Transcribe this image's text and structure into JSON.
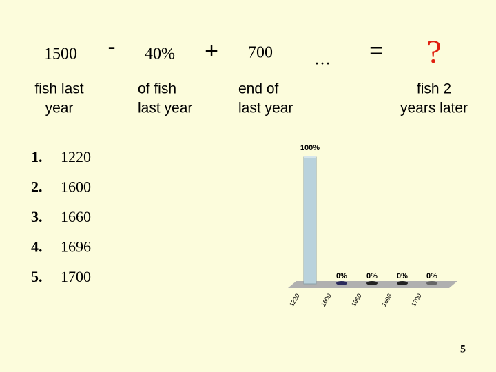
{
  "terms": [
    {
      "text": "1500",
      "lines": [
        "fish last",
        "year"
      ]
    },
    {
      "text": "40%",
      "lines": [
        "of fish",
        "last year"
      ]
    },
    {
      "text": "700",
      "lines": [
        "end of",
        "last year"
      ]
    },
    {
      "text": "?",
      "lines": [
        "fish 2",
        "years later"
      ]
    }
  ],
  "operators": [
    "-",
    "+",
    "…",
    "="
  ],
  "options": [
    {
      "number": "1.",
      "text": "1220"
    },
    {
      "number": "2.",
      "text": "1600"
    },
    {
      "number": "3.",
      "text": "1660"
    },
    {
      "number": "4.",
      "text": "1696"
    },
    {
      "number": "5.",
      "text": "1700"
    }
  ],
  "chart_data": {
    "type": "bar",
    "categories": [
      "1220",
      "1600",
      "1660",
      "1696",
      "1700"
    ],
    "values": [
      100,
      0,
      0,
      0,
      0
    ],
    "value_labels": [
      "100%",
      "0%",
      "0%",
      "0%",
      "0%"
    ],
    "colors": [
      "#b9d2dc",
      "#2a2a5a",
      "#222222",
      "#222222",
      "#666666"
    ]
  },
  "page_number": "5"
}
